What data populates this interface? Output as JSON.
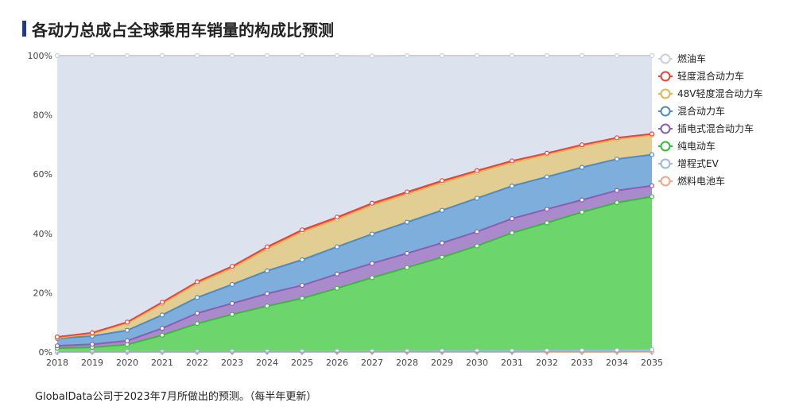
{
  "page": {
    "title": "各动力总成占全球乘用车销量的构成比预测",
    "footnote": "GlobalData公司于2023年7月所做出的预测。（每半年更新）"
  },
  "chart_data": {
    "type": "area",
    "stacked": true,
    "title": "各动力总成占全球乘用车销量的构成比预测",
    "x": [
      "2018",
      "2019",
      "2020",
      "2021",
      "2022",
      "2023",
      "2024",
      "2025",
      "2026",
      "2027",
      "2028",
      "2029",
      "2030",
      "2031",
      "2032",
      "2033",
      "2034",
      "2035"
    ],
    "y_ticks": [
      "0%",
      "20%",
      "40%",
      "60%",
      "80%",
      "100%"
    ],
    "ylim": [
      0,
      100
    ],
    "legend_position": "right",
    "series": [
      {
        "name": "燃料电池车",
        "color": "#f4a582",
        "fill": "#f4a582",
        "values": [
          0.1,
          0.1,
          0.1,
          0.1,
          0.1,
          0.1,
          0.1,
          0.1,
          0.1,
          0.1,
          0.1,
          0.1,
          0.1,
          0.1,
          0.1,
          0.1,
          0.1,
          0.2
        ]
      },
      {
        "name": "增程式EV",
        "color": "#9bb9dc",
        "fill": "#b8cde6",
        "values": [
          0.0,
          0.0,
          0.0,
          0.0,
          0.0,
          0.1,
          0.1,
          0.1,
          0.2,
          0.2,
          0.2,
          0.3,
          0.3,
          0.3,
          0.4,
          0.5,
          0.5,
          0.6
        ]
      },
      {
        "name": "纯电动车",
        "color": "#3cb93c",
        "fill": "#6cd56c",
        "values": [
          1.2,
          1.5,
          2.4,
          5.6,
          9.5,
          12.5,
          15.3,
          17.9,
          21.2,
          24.8,
          28.2,
          31.6,
          35.4,
          39.8,
          43.1,
          46.6,
          49.8,
          51.6
        ]
      },
      {
        "name": "插电式混合动力车",
        "color": "#8e5bb5",
        "fill": "#a98bcb",
        "values": [
          0.8,
          1.0,
          1.3,
          2.3,
          3.5,
          3.7,
          4.2,
          4.4,
          4.8,
          4.8,
          4.8,
          4.8,
          4.8,
          4.8,
          4.6,
          4.1,
          4.1,
          3.7
        ]
      },
      {
        "name": "混合动力车",
        "color": "#4b8bc6",
        "fill": "#7eaedb",
        "values": [
          2.5,
          2.8,
          3.5,
          4.5,
          5.3,
          6.4,
          7.7,
          8.6,
          9.2,
          9.9,
          10.5,
          11.0,
          11.3,
          11.0,
          10.9,
          11.0,
          10.6,
          10.5
        ]
      },
      {
        "name": "48V轻度混合动力车",
        "color": "#e0b556",
        "fill": "#e2cd92",
        "values": [
          0.2,
          0.8,
          2.4,
          3.8,
          4.7,
          5.5,
          7.4,
          9.4,
          9.3,
          9.7,
          9.5,
          9.3,
          8.7,
          7.9,
          7.5,
          7.1,
          6.7,
          6.6
        ]
      },
      {
        "name": "轻度混合动力车",
        "color": "#e8453c",
        "fill": "#e8453c",
        "values": [
          0.3,
          0.3,
          0.4,
          0.5,
          0.6,
          0.6,
          0.7,
          0.7,
          0.7,
          0.7,
          0.7,
          0.7,
          0.6,
          0.6,
          0.5,
          0.5,
          0.5,
          0.4
        ]
      },
      {
        "name": "燃油车",
        "color": "#c9cfe0",
        "fill": "#dde3ee",
        "values": [
          94.9,
          93.5,
          89.9,
          83.2,
          76.3,
          71.1,
          64.5,
          58.8,
          54.5,
          49.7,
          46.0,
          42.2,
          38.8,
          35.5,
          32.9,
          30.1,
          27.7,
          26.4
        ]
      }
    ],
    "legend_order": [
      "燃油车",
      "轻度混合动力车",
      "48V轻度混合动力车",
      "混合动力车",
      "插电式混合动力车",
      "纯电动车",
      "增程式EV",
      "燃料电池车"
    ]
  }
}
